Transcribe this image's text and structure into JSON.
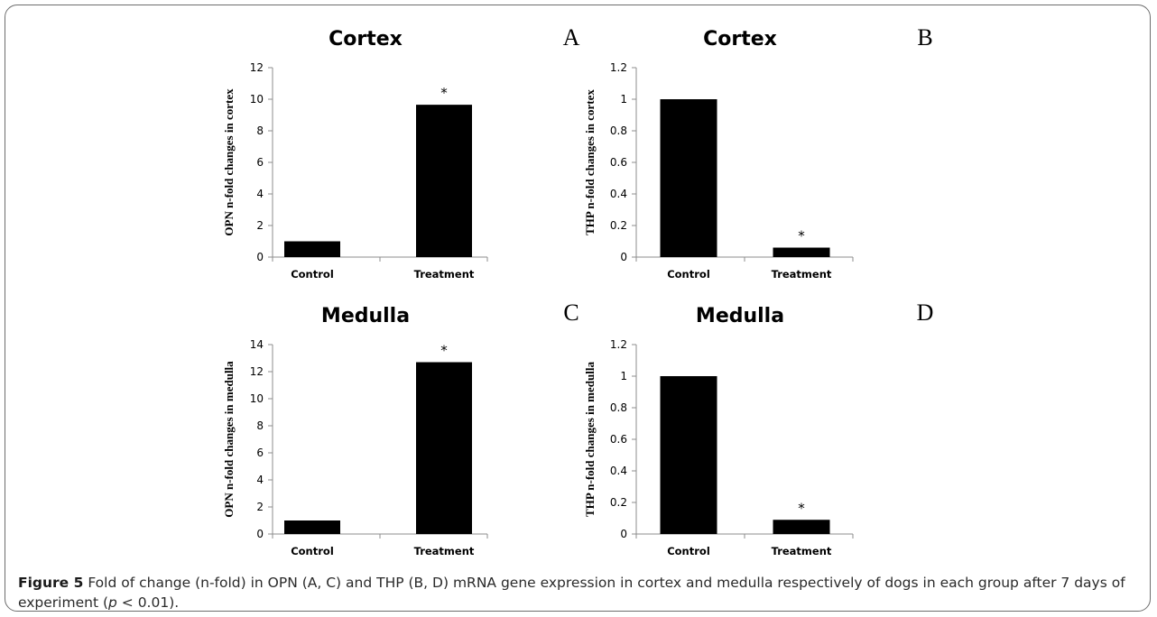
{
  "chart_data": [
    {
      "type": "bar",
      "panel": "A",
      "title": "Cortex",
      "ylabel": "OPN n-fold changes in cortex",
      "categories": [
        "Control",
        "Treatment"
      ],
      "values": [
        1,
        9.65
      ],
      "ylim": [
        0,
        12
      ],
      "yticks": [
        "0",
        "2",
        "4",
        "6",
        "8",
        "10",
        "12"
      ],
      "annotations": [
        {
          "category": "Treatment",
          "text": "*"
        }
      ],
      "color": "#000000"
    },
    {
      "type": "bar",
      "panel": "B",
      "title": "Cortex",
      "ylabel": "THP n-fold changes in cortex",
      "categories": [
        "Control",
        "Treatment"
      ],
      "values": [
        1,
        0.06
      ],
      "ylim": [
        0,
        1.2
      ],
      "yticks": [
        "0",
        "0.2",
        "0.4",
        "0.6",
        "0.8",
        "1",
        "1.2"
      ],
      "annotations": [
        {
          "category": "Treatment",
          "text": "*"
        }
      ],
      "color": "#000000"
    },
    {
      "type": "bar",
      "panel": "C",
      "title": "Medulla",
      "ylabel": "OPN n-fold changes in medulla",
      "categories": [
        "Control",
        "Treatment"
      ],
      "values": [
        1,
        12.7
      ],
      "ylim": [
        0,
        14
      ],
      "yticks": [
        "0",
        "2",
        "4",
        "6",
        "8",
        "10",
        "12",
        "14"
      ],
      "annotations": [
        {
          "category": "Treatment",
          "text": "*"
        }
      ],
      "color": "#000000"
    },
    {
      "type": "bar",
      "panel": "D",
      "title": "Medulla",
      "ylabel": "THP n-fold changes in medulla",
      "categories": [
        "Control",
        "Treatment"
      ],
      "values": [
        1,
        0.09
      ],
      "ylim": [
        0,
        1.2
      ],
      "yticks": [
        "0",
        "0.2",
        "0.4",
        "0.6",
        "0.8",
        "1",
        "1.2"
      ],
      "annotations": [
        {
          "category": "Treatment",
          "text": "*"
        }
      ],
      "color": "#000000"
    }
  ],
  "caption": {
    "label": "Figure 5",
    "text_before_p": "Fold of change (n-fold) in OPN (A, C) and THP (B, D) mRNA gene expression in cortex and medulla respectively of dogs in each group after 7 days of experiment (",
    "p_symbol": "p",
    "text_after_p": " < 0.01)."
  }
}
